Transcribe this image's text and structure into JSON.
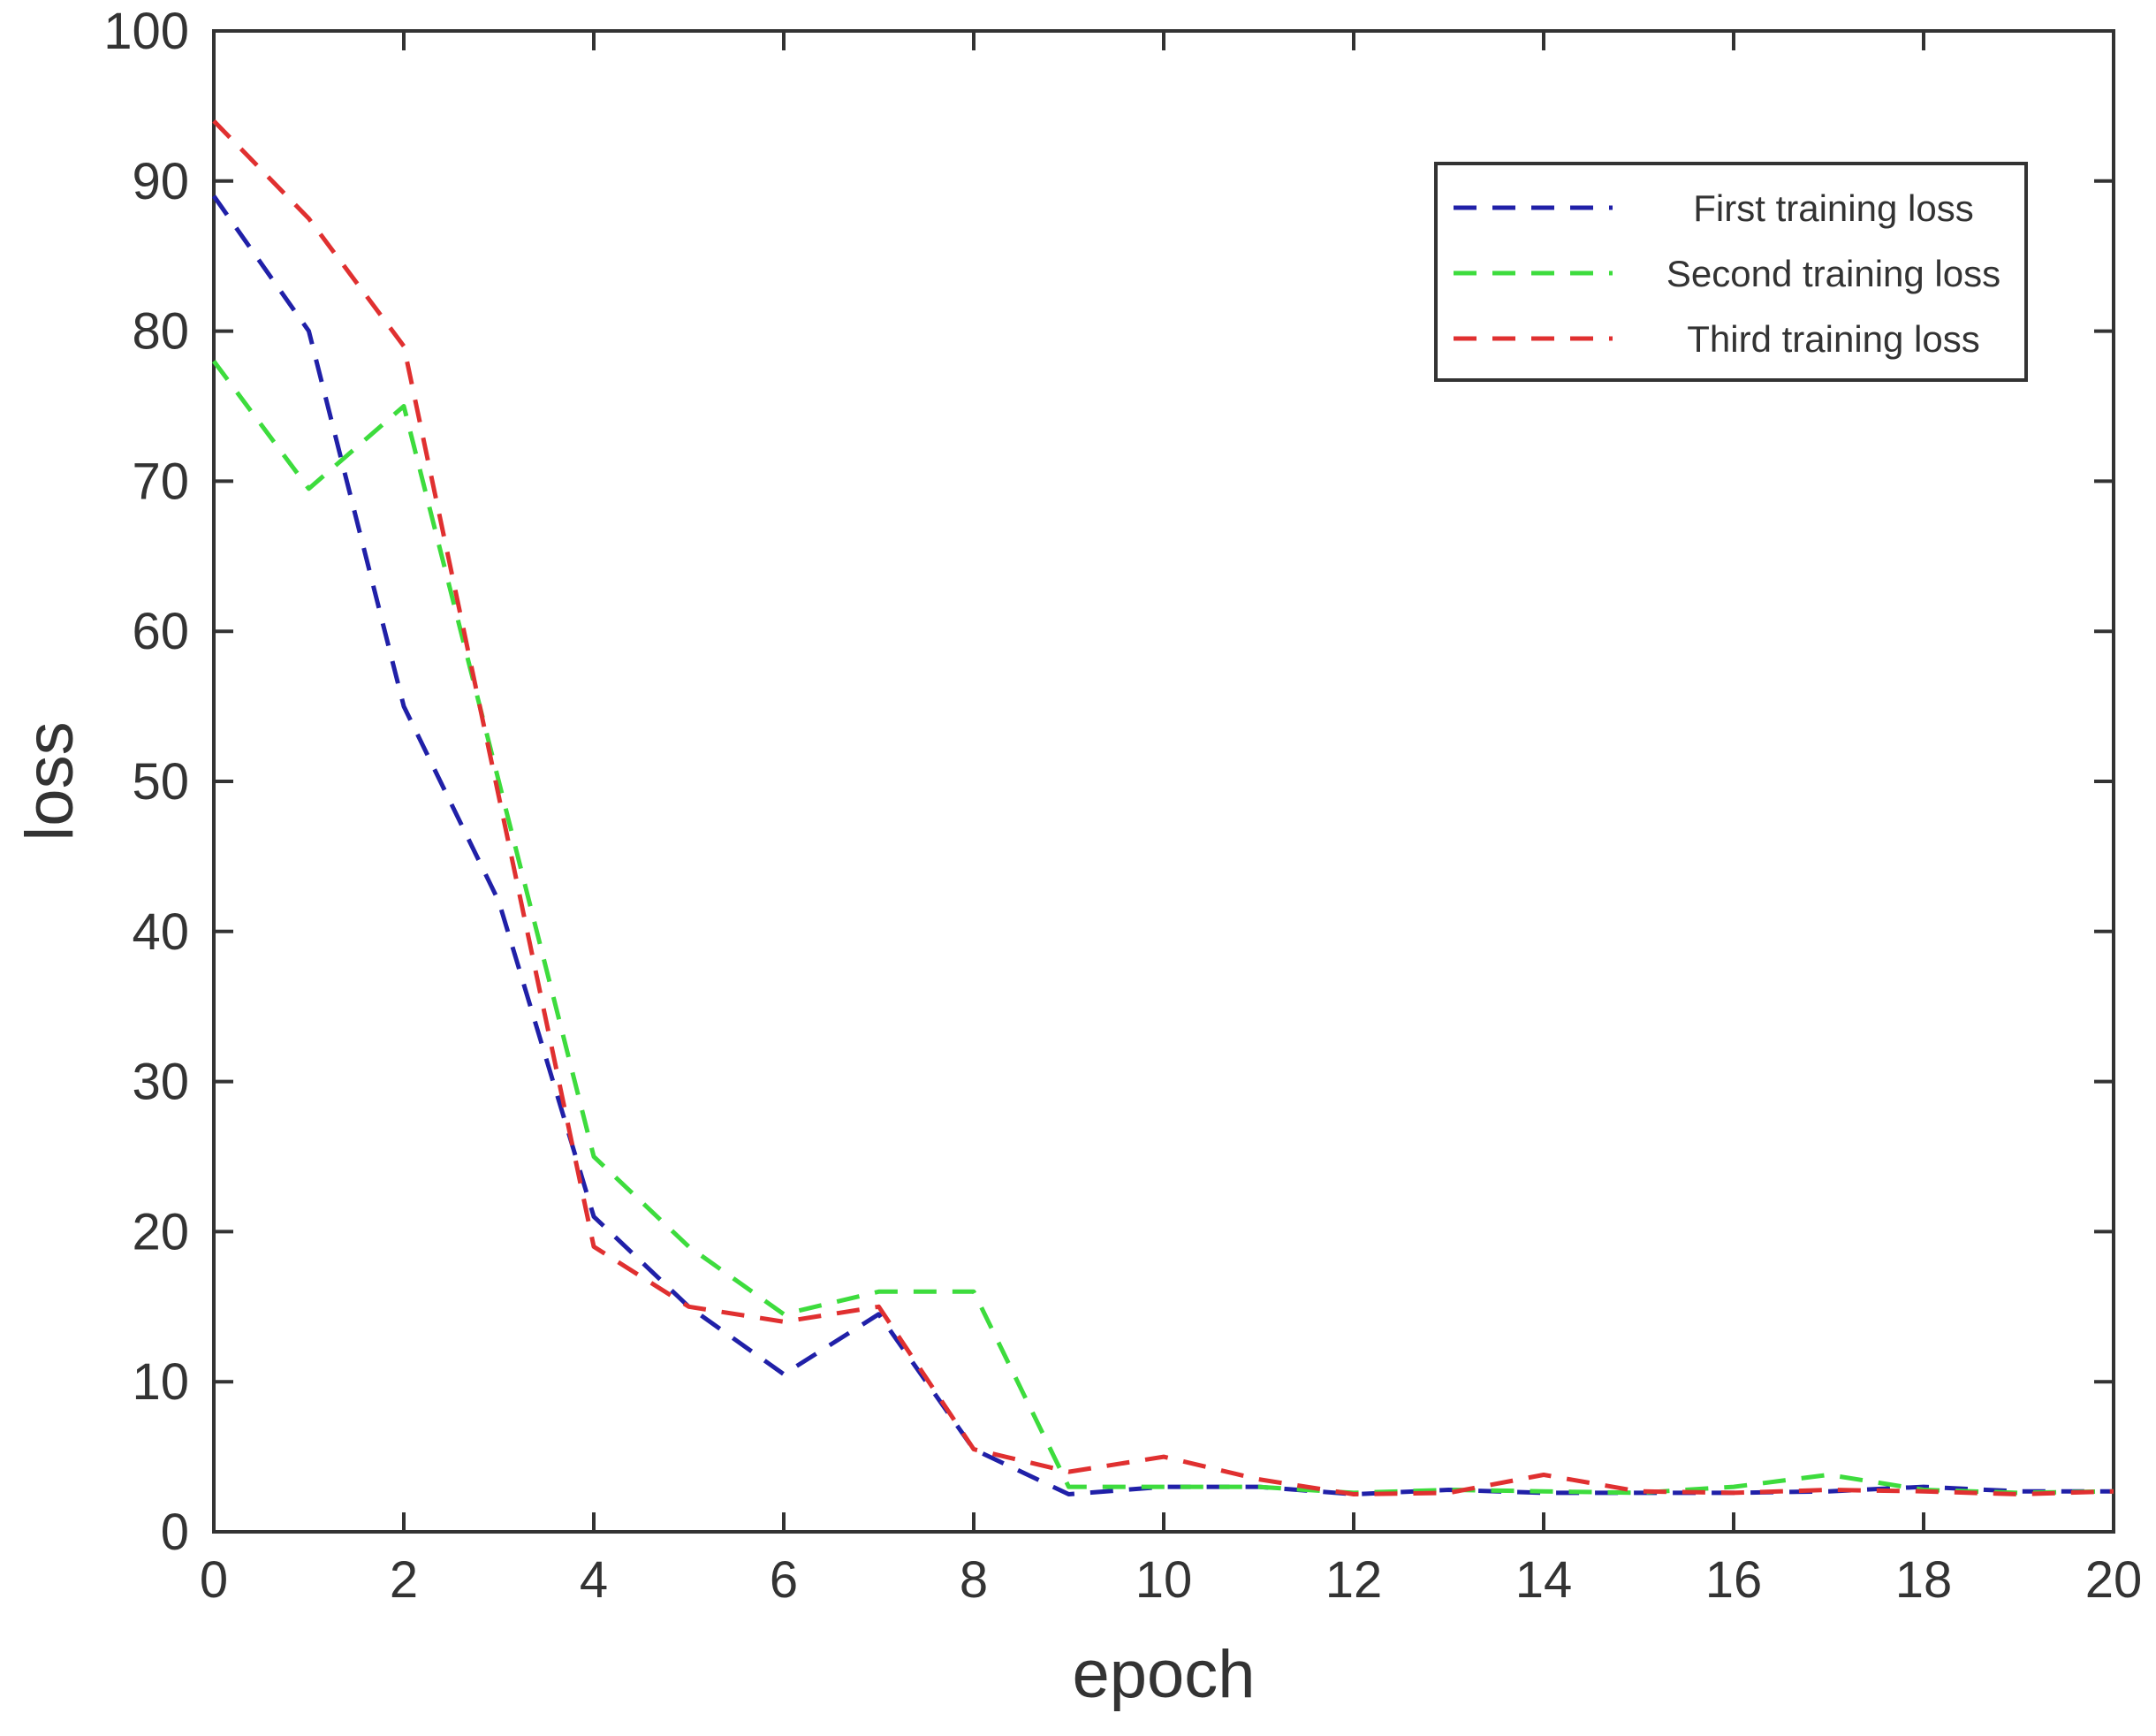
{
  "chart_data": {
    "type": "line",
    "xlabel": "epoch",
    "ylabel": "loss",
    "xlim": [
      0,
      20
    ],
    "ylim": [
      0,
      100
    ],
    "xticks": [
      0,
      2,
      4,
      6,
      8,
      10,
      12,
      14,
      16,
      18,
      20
    ],
    "yticks": [
      0,
      10,
      20,
      30,
      40,
      50,
      60,
      70,
      80,
      90,
      100
    ],
    "grid": false,
    "legend_position": "top-right",
    "line_style": "dashed",
    "x": [
      0,
      1,
      2,
      3,
      4,
      5,
      6,
      7,
      8,
      9,
      10,
      11,
      12,
      13,
      14,
      15,
      16,
      17,
      18,
      19,
      20
    ],
    "series": [
      {
        "name": "First training loss",
        "color": "#2020a8",
        "values": [
          89,
          80,
          55,
          42,
          21,
          15,
          10.5,
          14.5,
          5.5,
          2.5,
          3,
          3,
          2.5,
          2.8,
          2.6,
          2.6,
          2.6,
          2.7,
          3,
          2.7,
          2.7
        ]
      },
      {
        "name": "Second training loss",
        "color": "#3ddc3d",
        "values": [
          78,
          69.5,
          75,
          50,
          25,
          19,
          14.5,
          16,
          16,
          3,
          3,
          3,
          2.6,
          2.8,
          2.7,
          2.6,
          3,
          3.8,
          2.8,
          2.6,
          2.7
        ]
      },
      {
        "name": "Third training loss",
        "color": "#e03030",
        "values": [
          94,
          87.5,
          79,
          49,
          19,
          15,
          14,
          15,
          5.5,
          4,
          5,
          3.5,
          2.5,
          2.6,
          3.8,
          2.7,
          2.6,
          2.8,
          2.7,
          2.5,
          2.7
        ]
      }
    ]
  }
}
